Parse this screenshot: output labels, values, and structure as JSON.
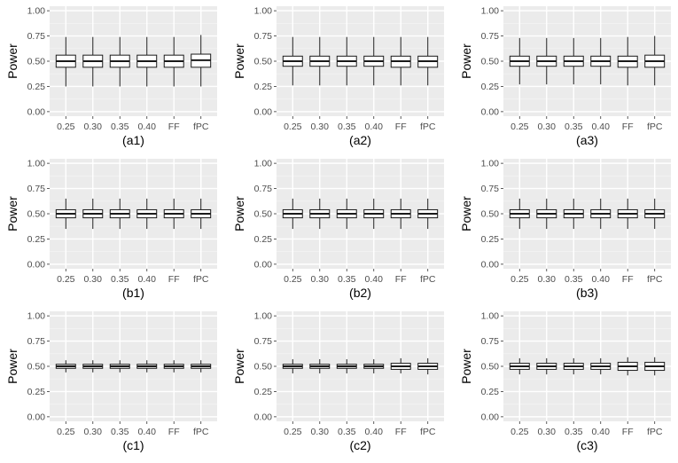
{
  "colors": {
    "panel_background": "#ebebeb",
    "grid_major": "#ffffff",
    "grid_minor": "#f4f4f4",
    "box_fill": "#ffffff",
    "box_outline": "#1a1a1a",
    "tick_label": "#4d4d4d",
    "axis_title": "#000000"
  },
  "chart_data": [
    {
      "type": "boxplot",
      "caption": "(a1)",
      "ylabel": "Power",
      "ylim": [
        0,
        1
      ],
      "yticks": [
        "0.00",
        "0.25",
        "0.50",
        "0.75",
        "1.00"
      ],
      "categories": [
        "0.25",
        "0.30",
        "0.35",
        "0.40",
        "FF",
        "fPC"
      ],
      "boxes": [
        {
          "whisker_low": 0.25,
          "q1": 0.44,
          "median": 0.5,
          "q3": 0.56,
          "whisker_high": 0.74
        },
        {
          "whisker_low": 0.25,
          "q1": 0.44,
          "median": 0.5,
          "q3": 0.56,
          "whisker_high": 0.74
        },
        {
          "whisker_low": 0.25,
          "q1": 0.44,
          "median": 0.5,
          "q3": 0.56,
          "whisker_high": 0.74
        },
        {
          "whisker_low": 0.25,
          "q1": 0.44,
          "median": 0.5,
          "q3": 0.56,
          "whisker_high": 0.74
        },
        {
          "whisker_low": 0.25,
          "q1": 0.44,
          "median": 0.5,
          "q3": 0.56,
          "whisker_high": 0.74
        },
        {
          "whisker_low": 0.25,
          "q1": 0.44,
          "median": 0.51,
          "q3": 0.57,
          "whisker_high": 0.76
        }
      ]
    },
    {
      "type": "boxplot",
      "caption": "(a2)",
      "ylabel": "Power",
      "ylim": [
        0,
        1
      ],
      "yticks": [
        "0.00",
        "0.25",
        "0.50",
        "0.75",
        "1.00"
      ],
      "categories": [
        "0.25",
        "0.30",
        "0.35",
        "0.40",
        "FF",
        "fPC"
      ],
      "boxes": [
        {
          "whisker_low": 0.26,
          "q1": 0.45,
          "median": 0.5,
          "q3": 0.55,
          "whisker_high": 0.74
        },
        {
          "whisker_low": 0.26,
          "q1": 0.45,
          "median": 0.5,
          "q3": 0.55,
          "whisker_high": 0.74
        },
        {
          "whisker_low": 0.26,
          "q1": 0.45,
          "median": 0.5,
          "q3": 0.55,
          "whisker_high": 0.74
        },
        {
          "whisker_low": 0.26,
          "q1": 0.45,
          "median": 0.5,
          "q3": 0.55,
          "whisker_high": 0.74
        },
        {
          "whisker_low": 0.26,
          "q1": 0.44,
          "median": 0.5,
          "q3": 0.55,
          "whisker_high": 0.74
        },
        {
          "whisker_low": 0.26,
          "q1": 0.44,
          "median": 0.5,
          "q3": 0.55,
          "whisker_high": 0.74
        }
      ]
    },
    {
      "type": "boxplot",
      "caption": "(a3)",
      "ylabel": "Power",
      "ylim": [
        0,
        1
      ],
      "yticks": [
        "0.00",
        "0.25",
        "0.50",
        "0.75",
        "1.00"
      ],
      "categories": [
        "0.25",
        "0.30",
        "0.35",
        "0.40",
        "FF",
        "fPC"
      ],
      "boxes": [
        {
          "whisker_low": 0.27,
          "q1": 0.45,
          "median": 0.5,
          "q3": 0.55,
          "whisker_high": 0.73
        },
        {
          "whisker_low": 0.27,
          "q1": 0.45,
          "median": 0.5,
          "q3": 0.55,
          "whisker_high": 0.73
        },
        {
          "whisker_low": 0.27,
          "q1": 0.45,
          "median": 0.5,
          "q3": 0.55,
          "whisker_high": 0.73
        },
        {
          "whisker_low": 0.27,
          "q1": 0.45,
          "median": 0.5,
          "q3": 0.55,
          "whisker_high": 0.73
        },
        {
          "whisker_low": 0.26,
          "q1": 0.44,
          "median": 0.5,
          "q3": 0.55,
          "whisker_high": 0.74
        },
        {
          "whisker_low": 0.26,
          "q1": 0.44,
          "median": 0.5,
          "q3": 0.56,
          "whisker_high": 0.75
        }
      ]
    },
    {
      "type": "boxplot",
      "caption": "(b1)",
      "ylabel": "Power",
      "ylim": [
        0,
        1
      ],
      "yticks": [
        "0.00",
        "0.25",
        "0.50",
        "0.75",
        "1.00"
      ],
      "categories": [
        "0.25",
        "0.30",
        "0.35",
        "0.40",
        "FF",
        "fPC"
      ],
      "boxes": [
        {
          "whisker_low": 0.35,
          "q1": 0.46,
          "median": 0.5,
          "q3": 0.54,
          "whisker_high": 0.65
        },
        {
          "whisker_low": 0.35,
          "q1": 0.46,
          "median": 0.5,
          "q3": 0.54,
          "whisker_high": 0.65
        },
        {
          "whisker_low": 0.35,
          "q1": 0.46,
          "median": 0.5,
          "q3": 0.54,
          "whisker_high": 0.65
        },
        {
          "whisker_low": 0.35,
          "q1": 0.46,
          "median": 0.5,
          "q3": 0.54,
          "whisker_high": 0.65
        },
        {
          "whisker_low": 0.35,
          "q1": 0.46,
          "median": 0.5,
          "q3": 0.54,
          "whisker_high": 0.65
        },
        {
          "whisker_low": 0.35,
          "q1": 0.46,
          "median": 0.5,
          "q3": 0.54,
          "whisker_high": 0.65
        }
      ]
    },
    {
      "type": "boxplot",
      "caption": "(b2)",
      "ylabel": "Power",
      "ylim": [
        0,
        1
      ],
      "yticks": [
        "0.00",
        "0.25",
        "0.50",
        "0.75",
        "1.00"
      ],
      "categories": [
        "0.25",
        "0.30",
        "0.35",
        "0.40",
        "FF",
        "fPC"
      ],
      "boxes": [
        {
          "whisker_low": 0.35,
          "q1": 0.46,
          "median": 0.5,
          "q3": 0.54,
          "whisker_high": 0.65
        },
        {
          "whisker_low": 0.35,
          "q1": 0.46,
          "median": 0.5,
          "q3": 0.54,
          "whisker_high": 0.65
        },
        {
          "whisker_low": 0.35,
          "q1": 0.46,
          "median": 0.5,
          "q3": 0.54,
          "whisker_high": 0.65
        },
        {
          "whisker_low": 0.35,
          "q1": 0.46,
          "median": 0.5,
          "q3": 0.54,
          "whisker_high": 0.65
        },
        {
          "whisker_low": 0.35,
          "q1": 0.46,
          "median": 0.5,
          "q3": 0.54,
          "whisker_high": 0.65
        },
        {
          "whisker_low": 0.35,
          "q1": 0.46,
          "median": 0.5,
          "q3": 0.54,
          "whisker_high": 0.65
        }
      ]
    },
    {
      "type": "boxplot",
      "caption": "(b3)",
      "ylabel": "Power",
      "ylim": [
        0,
        1
      ],
      "yticks": [
        "0.00",
        "0.25",
        "0.50",
        "0.75",
        "1.00"
      ],
      "categories": [
        "0.25",
        "0.30",
        "0.35",
        "0.40",
        "FF",
        "fPC"
      ],
      "boxes": [
        {
          "whisker_low": 0.35,
          "q1": 0.46,
          "median": 0.5,
          "q3": 0.54,
          "whisker_high": 0.65
        },
        {
          "whisker_low": 0.35,
          "q1": 0.46,
          "median": 0.5,
          "q3": 0.54,
          "whisker_high": 0.65
        },
        {
          "whisker_low": 0.35,
          "q1": 0.46,
          "median": 0.5,
          "q3": 0.54,
          "whisker_high": 0.65
        },
        {
          "whisker_low": 0.35,
          "q1": 0.46,
          "median": 0.5,
          "q3": 0.54,
          "whisker_high": 0.65
        },
        {
          "whisker_low": 0.35,
          "q1": 0.46,
          "median": 0.5,
          "q3": 0.54,
          "whisker_high": 0.65
        },
        {
          "whisker_low": 0.35,
          "q1": 0.46,
          "median": 0.5,
          "q3": 0.54,
          "whisker_high": 0.65
        }
      ]
    },
    {
      "type": "boxplot",
      "caption": "(c1)",
      "ylabel": "Power",
      "ylim": [
        0,
        1
      ],
      "yticks": [
        "0.00",
        "0.25",
        "0.50",
        "0.75",
        "1.00"
      ],
      "categories": [
        "0.25",
        "0.30",
        "0.35",
        "0.40",
        "FF",
        "fPC"
      ],
      "boxes": [
        {
          "whisker_low": 0.44,
          "q1": 0.48,
          "median": 0.5,
          "q3": 0.52,
          "whisker_high": 0.56
        },
        {
          "whisker_low": 0.44,
          "q1": 0.48,
          "median": 0.5,
          "q3": 0.52,
          "whisker_high": 0.56
        },
        {
          "whisker_low": 0.44,
          "q1": 0.48,
          "median": 0.5,
          "q3": 0.52,
          "whisker_high": 0.56
        },
        {
          "whisker_low": 0.44,
          "q1": 0.48,
          "median": 0.5,
          "q3": 0.52,
          "whisker_high": 0.56
        },
        {
          "whisker_low": 0.44,
          "q1": 0.48,
          "median": 0.5,
          "q3": 0.52,
          "whisker_high": 0.56
        },
        {
          "whisker_low": 0.44,
          "q1": 0.48,
          "median": 0.5,
          "q3": 0.52,
          "whisker_high": 0.56
        }
      ]
    },
    {
      "type": "boxplot",
      "caption": "(c2)",
      "ylabel": "Power",
      "ylim": [
        0,
        1
      ],
      "yticks": [
        "0.00",
        "0.25",
        "0.50",
        "0.75",
        "1.00"
      ],
      "categories": [
        "0.25",
        "0.30",
        "0.35",
        "0.40",
        "FF",
        "fPC"
      ],
      "boxes": [
        {
          "whisker_low": 0.43,
          "q1": 0.48,
          "median": 0.5,
          "q3": 0.52,
          "whisker_high": 0.57
        },
        {
          "whisker_low": 0.43,
          "q1": 0.48,
          "median": 0.5,
          "q3": 0.52,
          "whisker_high": 0.57
        },
        {
          "whisker_low": 0.43,
          "q1": 0.48,
          "median": 0.5,
          "q3": 0.52,
          "whisker_high": 0.57
        },
        {
          "whisker_low": 0.43,
          "q1": 0.48,
          "median": 0.5,
          "q3": 0.52,
          "whisker_high": 0.57
        },
        {
          "whisker_low": 0.43,
          "q1": 0.47,
          "median": 0.5,
          "q3": 0.53,
          "whisker_high": 0.58
        },
        {
          "whisker_low": 0.42,
          "q1": 0.47,
          "median": 0.5,
          "q3": 0.53,
          "whisker_high": 0.58
        }
      ]
    },
    {
      "type": "boxplot",
      "caption": "(c3)",
      "ylabel": "Power",
      "ylim": [
        0,
        1
      ],
      "yticks": [
        "0.00",
        "0.25",
        "0.50",
        "0.75",
        "1.00"
      ],
      "categories": [
        "0.25",
        "0.30",
        "0.35",
        "0.40",
        "FF",
        "fPC"
      ],
      "boxes": [
        {
          "whisker_low": 0.42,
          "q1": 0.47,
          "median": 0.5,
          "q3": 0.53,
          "whisker_high": 0.58
        },
        {
          "whisker_low": 0.42,
          "q1": 0.47,
          "median": 0.5,
          "q3": 0.53,
          "whisker_high": 0.58
        },
        {
          "whisker_low": 0.42,
          "q1": 0.47,
          "median": 0.5,
          "q3": 0.53,
          "whisker_high": 0.58
        },
        {
          "whisker_low": 0.42,
          "q1": 0.47,
          "median": 0.5,
          "q3": 0.53,
          "whisker_high": 0.58
        },
        {
          "whisker_low": 0.41,
          "q1": 0.46,
          "median": 0.5,
          "q3": 0.54,
          "whisker_high": 0.59
        },
        {
          "whisker_low": 0.41,
          "q1": 0.46,
          "median": 0.5,
          "q3": 0.54,
          "whisker_high": 0.59
        }
      ]
    }
  ]
}
